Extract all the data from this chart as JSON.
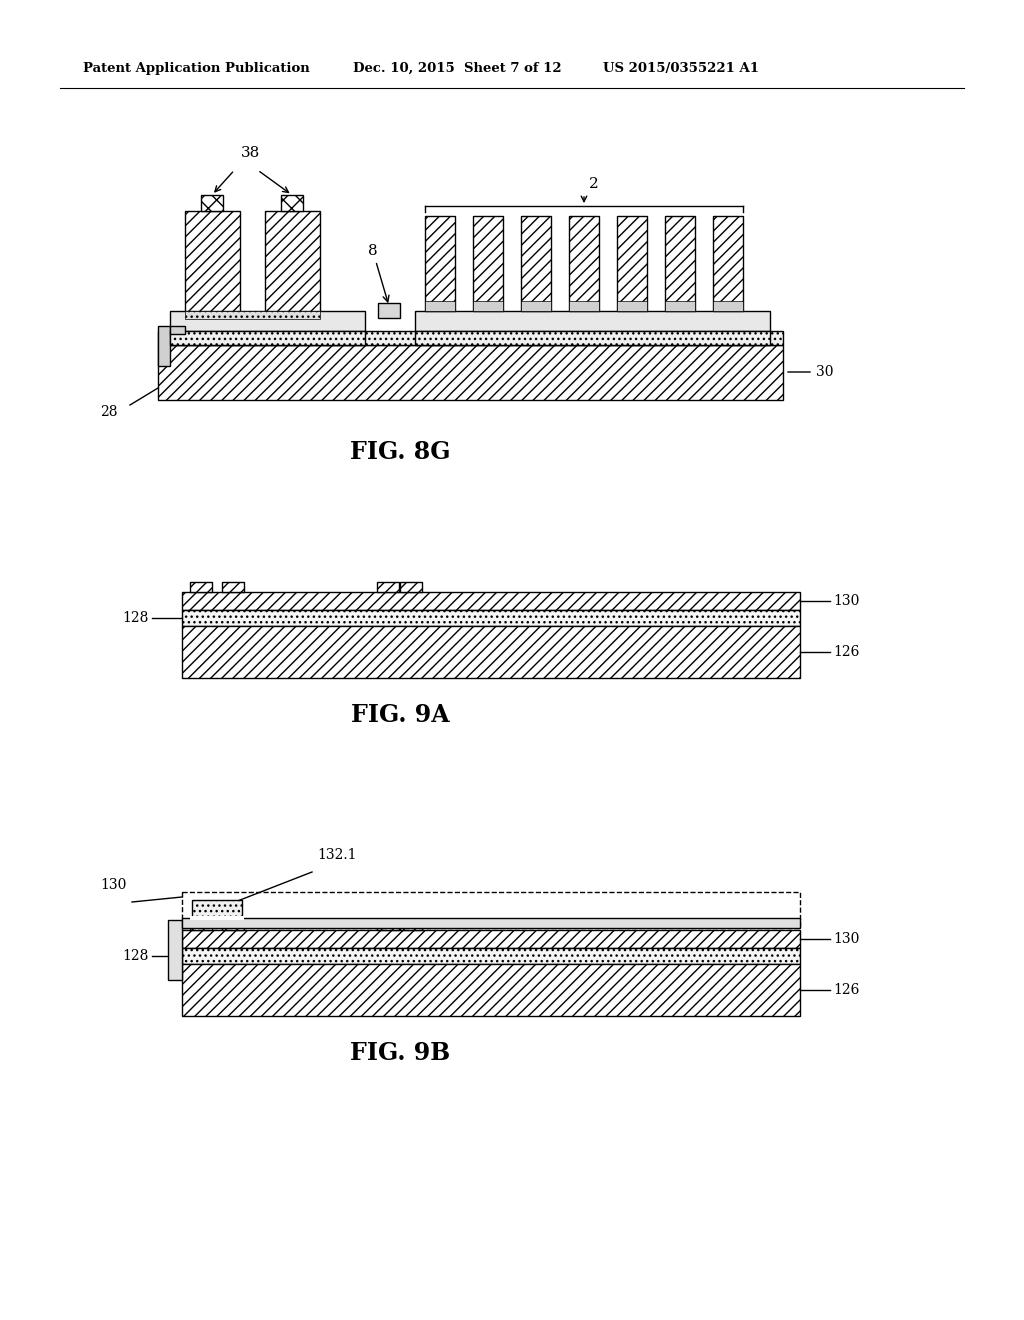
{
  "bg_color": "#ffffff",
  "header_left": "Patent Application Publication",
  "header_mid": "Dec. 10, 2015  Sheet 7 of 12",
  "header_right": "US 2015/0355221 A1",
  "fig8g_label": "FIG. 8G",
  "fig9a_label": "FIG. 9A",
  "fig9b_label": "FIG. 9B",
  "lc": "#000000",
  "hatch_fc": "#ffffff",
  "hatch_fc2": "#e0e0e0",
  "dot_fc": "#e8e8e8"
}
